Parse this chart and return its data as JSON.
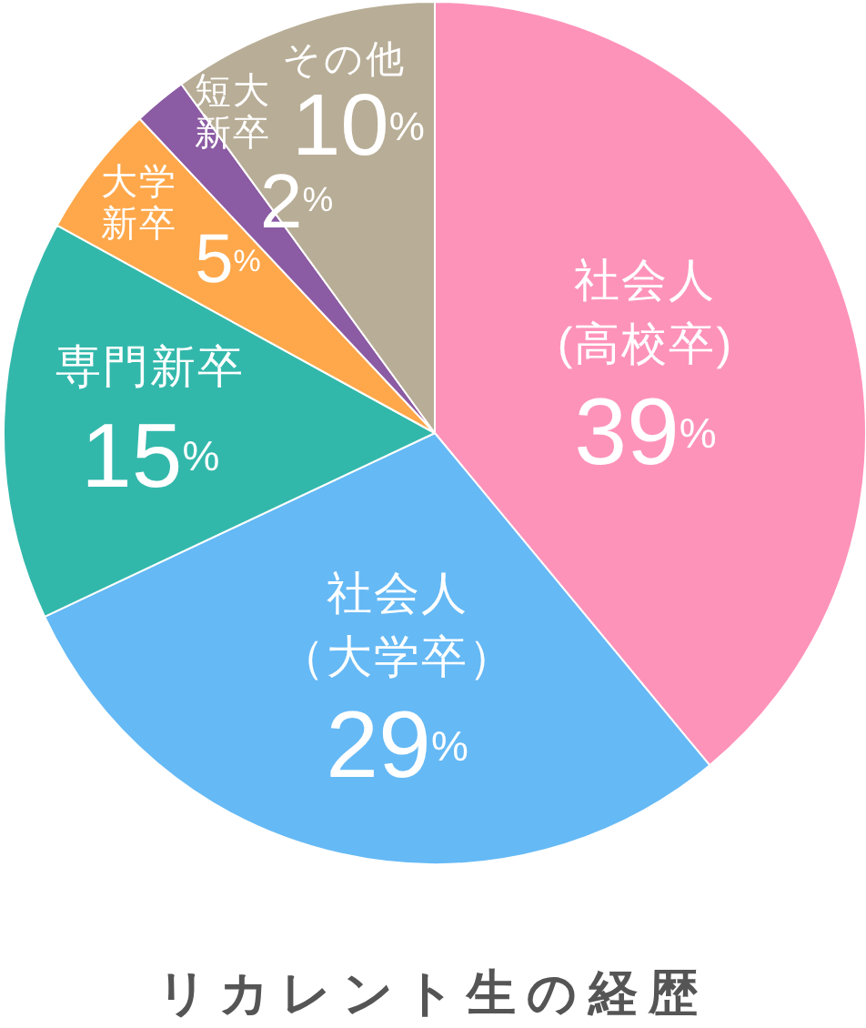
{
  "chart_data": {
    "type": "pie",
    "title": "リカレント生の経歴",
    "categories": [
      "社会人(高校卒)",
      "社会人（大学卒）",
      "専門新卒",
      "大学新卒",
      "短大新卒",
      "その他"
    ],
    "values": [
      39,
      29,
      15,
      5,
      2,
      10
    ],
    "value_labels": [
      "39%",
      "29%",
      "15%",
      "5%",
      "2%",
      "10%"
    ],
    "colors": [
      "#fe93ba",
      "#65b9f5",
      "#32b8ab",
      "#fea84b",
      "#8b5ba3",
      "#b8ad96"
    ]
  }
}
